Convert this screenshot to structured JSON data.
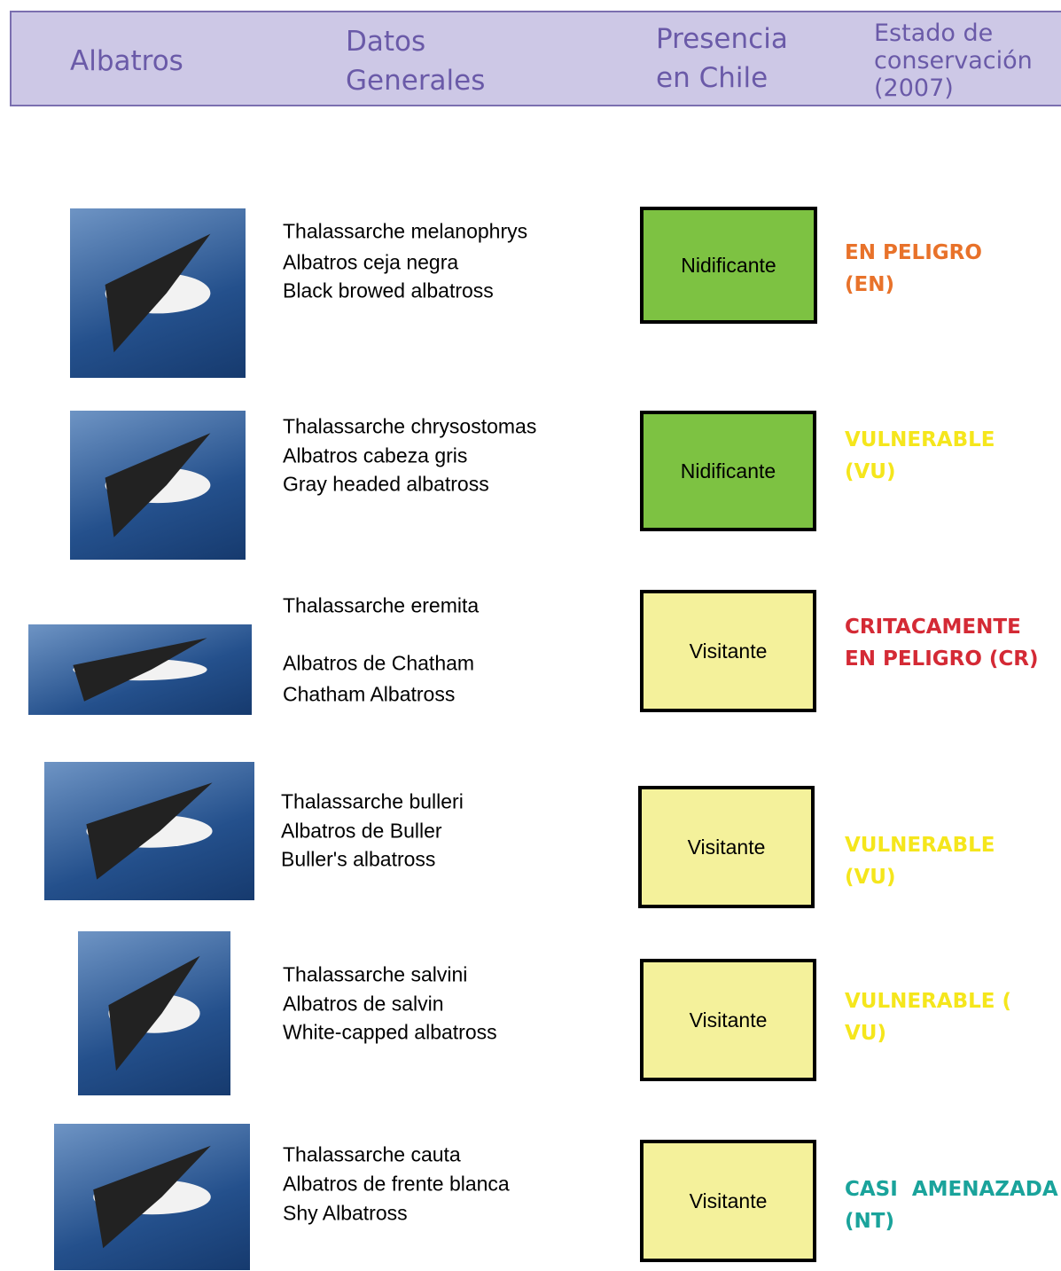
{
  "header": {
    "columns": [
      [
        "Albatros"
      ],
      [
        "Datos",
        "Generales"
      ],
      [
        "Presencia",
        "en Chile"
      ],
      [
        "Estado de",
        "conservación",
        "(2007)"
      ]
    ]
  },
  "rows": [
    {
      "names": [
        "Thalassarche melanophrys",
        "Albatros ceja negra",
        "Black browed albatross"
      ],
      "presence": "Nidificante",
      "presence_color": "#7dc242",
      "status": [
        "EN PELIGRO",
        "(EN)"
      ],
      "status_color": "#e8722a"
    },
    {
      "names": [
        "Thalassarche chrysostomas",
        "Albatros cabeza gris",
        "Gray headed albatross"
      ],
      "presence": "Nidificante",
      "presence_color": "#7dc242",
      "status": [
        "VULNERABLE",
        "(VU)"
      ],
      "status_color": "#f5e61c"
    },
    {
      "names": [
        "Thalassarche eremita",
        "Albatros de Chatham",
        "Chatham Albatross"
      ],
      "presence": "Visitante",
      "presence_color": "#f4f19b",
      "status": [
        "CRITACAMENTE",
        "EN PELIGRO (CR)"
      ],
      "status_color": "#d42a35"
    },
    {
      "names": [
        "Thalassarche bulleri",
        "Albatros de Buller",
        "Buller's albatross"
      ],
      "presence": "Visitante",
      "presence_color": "#f4f19b",
      "status": [
        "VULNERABLE",
        "(VU)"
      ],
      "status_color": "#f5e61c"
    },
    {
      "names": [
        "Thalassarche salvini",
        "Albatros de salvin",
        "White-capped albatross"
      ],
      "presence": "Visitante",
      "presence_color": "#f4f19b",
      "status": [
        "VULNERABLE (",
        "VU)"
      ],
      "status_color": "#f5e61c"
    },
    {
      "names": [
        "Thalassarche cauta",
        "Albatros de frente blanca",
        "Shy Albatross"
      ],
      "presence": "Visitante",
      "presence_color": "#f4f19b",
      "status": [
        "CASI  AMENAZADA",
        "(NT)"
      ],
      "status_color": "#1aa39b"
    }
  ]
}
